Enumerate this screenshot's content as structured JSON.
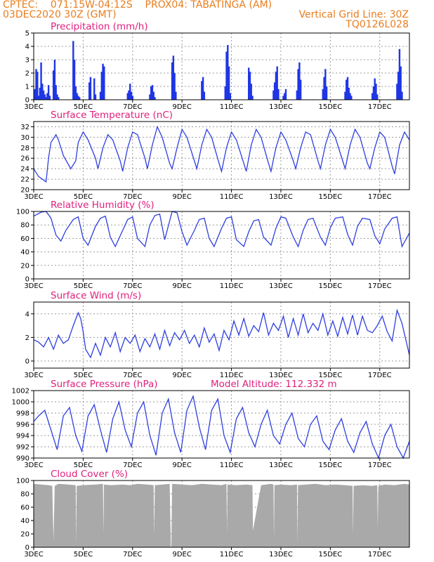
{
  "header": {
    "line1": "CPTEC:    071:15W-04:12S    PROX04: TABATINGA (AM)",
    "line2": "03DEC2020 30Z (GMT)",
    "right2": "Vertical Grid Line: 30Z",
    "right3": "TQ0126L028"
  },
  "colors": {
    "header": "#e87d1e",
    "title": "#e0207e",
    "line": "#2f3fe0",
    "bar": "#1f36e6",
    "cloud": "#a9a9a9",
    "grid": "#9a9a9a"
  },
  "chart_data": [
    {
      "id": "precip",
      "type": "bar",
      "title": "Precipitation (mm/h)",
      "ylim": [
        0,
        5
      ],
      "yticks": [
        0,
        1,
        2,
        3,
        4,
        5
      ],
      "x_unit": "day_of_month",
      "xlim": [
        3,
        18.2
      ],
      "xtick_labels": [
        "3DEC",
        "5DEC",
        "7DEC",
        "9DEC",
        "11DEC",
        "13DEC",
        "15DEC",
        "17DEC"
      ],
      "xtick_positions": [
        3,
        5,
        7,
        9,
        11,
        13,
        15,
        17
      ],
      "x": [
        3.05,
        3.1,
        3.15,
        3.2,
        3.25,
        3.3,
        3.35,
        3.4,
        3.45,
        3.5,
        3.55,
        3.6,
        3.65,
        3.8,
        3.85,
        3.9,
        3.95,
        4.0,
        4.6,
        4.65,
        4.7,
        4.75,
        4.8,
        4.85,
        5.25,
        5.3,
        5.45,
        5.5,
        5.7,
        5.75,
        5.8,
        5.85,
        6.8,
        6.85,
        6.9,
        6.95,
        7.0,
        7.7,
        7.75,
        7.8,
        7.85,
        7.9,
        8.6,
        8.65,
        8.7,
        8.75,
        9.8,
        9.85,
        9.9,
        10.75,
        10.8,
        10.85,
        10.9,
        10.95,
        11.7,
        11.75,
        11.8,
        11.85,
        12.7,
        12.75,
        12.8,
        12.85,
        12.9,
        13.1,
        13.15,
        13.2,
        13.65,
        13.7,
        13.75,
        13.8,
        14.7,
        14.75,
        14.8,
        14.85,
        15.6,
        15.65,
        15.7,
        15.75,
        15.8,
        15.85,
        16.7,
        16.75,
        16.8,
        16.85,
        16.9,
        17.7,
        17.75,
        17.8,
        17.85,
        17.9
      ],
      "values": [
        0.8,
        2.3,
        2.1,
        0.3,
        0.9,
        2.8,
        1.2,
        0.7,
        0.4,
        0.2,
        0.5,
        1.1,
        0.3,
        2.2,
        3.0,
        1.1,
        0.4,
        0.2,
        4.4,
        3.0,
        1.0,
        0.5,
        0.3,
        0.2,
        1.3,
        1.7,
        1.6,
        0.4,
        0.6,
        2.1,
        2.7,
        2.5,
        0.5,
        0.7,
        1.2,
        0.6,
        0.3,
        0.4,
        1.0,
        1.1,
        0.6,
        0.2,
        2.8,
        3.3,
        2.0,
        0.6,
        1.4,
        1.7,
        0.6,
        1.0,
        3.6,
        4.1,
        2.5,
        0.5,
        2.4,
        2.1,
        1.2,
        0.3,
        0.7,
        1.3,
        2.1,
        2.5,
        0.8,
        0.3,
        0.5,
        0.8,
        0.7,
        2.3,
        2.8,
        1.5,
        0.8,
        1.7,
        2.3,
        1.0,
        0.6,
        1.5,
        1.7,
        0.9,
        0.5,
        0.3,
        0.5,
        1.0,
        1.6,
        1.2,
        0.4,
        1.2,
        2.1,
        3.8,
        2.5,
        0.6
      ]
    },
    {
      "id": "temp",
      "type": "line",
      "title": "Surface Temperature (nC)",
      "ylim": [
        20,
        33
      ],
      "yticks": [
        20,
        22,
        24,
        26,
        28,
        30,
        32
      ],
      "x_unit": "day_of_month",
      "xlim": [
        3,
        18.2
      ],
      "xtick_labels": [
        "3DEC",
        "5DEC",
        "7DEC",
        "9DEC",
        "11DEC",
        "13DEC",
        "15DEC",
        "17DEC"
      ],
      "xtick_positions": [
        3,
        5,
        7,
        9,
        11,
        13,
        15,
        17
      ],
      "x": [
        3.0,
        3.2,
        3.5,
        3.6,
        3.7,
        3.9,
        4.0,
        4.2,
        4.5,
        4.7,
        4.8,
        5.0,
        5.2,
        5.5,
        5.6,
        5.8,
        6.0,
        6.2,
        6.5,
        6.6,
        6.8,
        7.0,
        7.2,
        7.5,
        7.6,
        7.8,
        8.0,
        8.2,
        8.5,
        8.6,
        8.8,
        9.0,
        9.2,
        9.5,
        9.6,
        9.8,
        10.0,
        10.2,
        10.5,
        10.6,
        10.8,
        11.0,
        11.2,
        11.5,
        11.6,
        11.8,
        12.0,
        12.2,
        12.5,
        12.6,
        12.8,
        13.0,
        13.2,
        13.5,
        13.6,
        13.8,
        14.0,
        14.2,
        14.5,
        14.6,
        14.8,
        15.0,
        15.2,
        15.5,
        15.6,
        15.8,
        16.0,
        16.2,
        16.5,
        16.6,
        16.8,
        17.0,
        17.2,
        17.5,
        17.6,
        17.8,
        18.0,
        18.2
      ],
      "values": [
        24.0,
        22.5,
        21.5,
        26.0,
        29.0,
        30.5,
        29.5,
        26.5,
        24.0,
        25.5,
        29.0,
        31.0,
        29.5,
        26.0,
        24.0,
        28.0,
        30.5,
        29.5,
        25.5,
        23.5,
        28.0,
        31.0,
        30.5,
        26.0,
        24.0,
        28.5,
        32.0,
        30.0,
        25.0,
        24.0,
        28.0,
        31.5,
        30.0,
        25.5,
        24.0,
        28.5,
        31.5,
        30.0,
        25.0,
        23.5,
        28.0,
        31.0,
        29.5,
        25.0,
        23.5,
        28.5,
        31.5,
        30.0,
        25.0,
        23.5,
        28.0,
        31.0,
        29.5,
        25.5,
        24.0,
        28.0,
        31.0,
        30.5,
        25.5,
        24.0,
        28.5,
        31.5,
        30.0,
        25.5,
        24.0,
        28.5,
        31.5,
        30.0,
        25.0,
        24.0,
        28.0,
        31.0,
        30.0,
        24.5,
        23.0,
        28.5,
        31.0,
        29.5
      ]
    },
    {
      "id": "rh",
      "type": "line",
      "title": "Relative Humidity (%)",
      "ylim": [
        0,
        100
      ],
      "yticks": [
        0,
        20,
        40,
        60,
        80,
        100
      ],
      "x_unit": "day_of_month",
      "xlim": [
        3,
        18.2
      ],
      "xtick_labels": [
        "3DEC",
        "5DEC",
        "7DEC",
        "9DEC",
        "11DEC",
        "13DEC",
        "15DEC",
        "17DEC"
      ],
      "xtick_positions": [
        3,
        5,
        7,
        9,
        11,
        13,
        15,
        17
      ],
      "x": [
        3.0,
        3.3,
        3.5,
        3.7,
        3.9,
        4.1,
        4.3,
        4.6,
        4.8,
        5.0,
        5.2,
        5.5,
        5.7,
        5.9,
        6.1,
        6.3,
        6.6,
        6.8,
        7.0,
        7.2,
        7.5,
        7.7,
        7.9,
        8.1,
        8.3,
        8.6,
        8.8,
        9.0,
        9.2,
        9.5,
        9.7,
        9.9,
        10.1,
        10.3,
        10.6,
        10.8,
        11.0,
        11.2,
        11.5,
        11.7,
        11.9,
        12.1,
        12.3,
        12.6,
        12.8,
        13.0,
        13.2,
        13.5,
        13.7,
        13.9,
        14.1,
        14.3,
        14.6,
        14.8,
        15.0,
        15.2,
        15.5,
        15.7,
        15.9,
        16.1,
        16.3,
        16.6,
        16.8,
        17.0,
        17.2,
        17.5,
        17.7,
        17.9,
        18.2
      ],
      "values": [
        93,
        99,
        100,
        90,
        65,
        56,
        72,
        88,
        92,
        60,
        50,
        78,
        90,
        93,
        62,
        48,
        72,
        88,
        92,
        60,
        48,
        80,
        94,
        96,
        58,
        100,
        98,
        70,
        50,
        72,
        88,
        90,
        60,
        48,
        75,
        90,
        92,
        58,
        48,
        70,
        86,
        88,
        62,
        50,
        75,
        92,
        90,
        62,
        48,
        72,
        88,
        90,
        62,
        50,
        76,
        90,
        92,
        66,
        50,
        78,
        90,
        88,
        64,
        52,
        74,
        90,
        92,
        48,
        68
      ]
    },
    {
      "id": "wind",
      "type": "line",
      "title": "Surface Wind (m/s)",
      "ylim": [
        -0.6,
        5.0
      ],
      "yticks": [
        0,
        2,
        4
      ],
      "x_unit": "day_of_month",
      "xlim": [
        3,
        18.2
      ],
      "xtick_labels": [
        "3DEC",
        "5DEC",
        "7DEC",
        "9DEC",
        "11DEC",
        "13DEC",
        "15DEC",
        "17DEC"
      ],
      "xtick_positions": [
        3,
        5,
        7,
        9,
        11,
        13,
        15,
        17
      ],
      "x": [
        3.0,
        3.2,
        3.4,
        3.6,
        3.8,
        4.0,
        4.2,
        4.4,
        4.6,
        4.8,
        4.9,
        5.0,
        5.1,
        5.3,
        5.5,
        5.7,
        5.9,
        6.1,
        6.3,
        6.5,
        6.7,
        6.9,
        7.1,
        7.3,
        7.5,
        7.7,
        7.9,
        8.1,
        8.3,
        8.5,
        8.7,
        8.9,
        9.1,
        9.3,
        9.5,
        9.7,
        9.9,
        10.1,
        10.3,
        10.5,
        10.7,
        10.9,
        11.1,
        11.3,
        11.5,
        11.7,
        11.9,
        12.1,
        12.3,
        12.5,
        12.7,
        12.9,
        13.1,
        13.3,
        13.5,
        13.7,
        13.9,
        14.1,
        14.3,
        14.5,
        14.7,
        14.9,
        15.1,
        15.3,
        15.5,
        15.7,
        15.9,
        16.1,
        16.3,
        16.5,
        16.7,
        16.9,
        17.1,
        17.3,
        17.5,
        17.7,
        17.9,
        18.2
      ],
      "values": [
        1.8,
        1.6,
        1.2,
        2.0,
        1.0,
        2.2,
        1.5,
        1.8,
        3.0,
        4.1,
        3.6,
        2.5,
        1.0,
        0.3,
        1.5,
        0.5,
        2.0,
        1.2,
        2.4,
        0.8,
        2.0,
        1.5,
        2.2,
        0.8,
        1.9,
        1.2,
        2.3,
        1.0,
        2.6,
        1.3,
        2.4,
        1.8,
        2.6,
        1.5,
        2.2,
        1.2,
        2.8,
        1.6,
        2.3,
        0.9,
        2.6,
        1.8,
        3.4,
        2.2,
        3.6,
        2.1,
        3.0,
        2.5,
        4.1,
        2.2,
        3.2,
        2.6,
        3.8,
        2.0,
        3.6,
        2.2,
        4.0,
        2.4,
        3.2,
        2.6,
        4.0,
        2.2,
        3.4,
        2.1,
        3.7,
        2.3,
        3.9,
        2.2,
        3.8,
        2.6,
        2.4,
        3.0,
        3.8,
        2.5,
        1.7,
        4.3,
        3.2,
        0.5
      ]
    },
    {
      "id": "pressure",
      "type": "line",
      "title": "Surface Pressure (hPa)",
      "annotation": "Model Altitude: 112.332 m",
      "ylim": [
        990,
        1002
      ],
      "yticks": [
        990,
        992,
        994,
        996,
        998,
        1000,
        1002
      ],
      "x_unit": "day_of_month",
      "xlim": [
        3,
        18.2
      ],
      "xtick_labels": [
        "3DEC",
        "5DEC",
        "7DEC",
        "9DEC",
        "11DEC",
        "13DEC",
        "15DEC",
        "17DEC"
      ],
      "xtick_positions": [
        3,
        5,
        7,
        9,
        11,
        13,
        15,
        17
      ],
      "x": [
        3.0,
        3.2,
        3.45,
        3.7,
        3.95,
        4.2,
        4.45,
        4.7,
        4.95,
        5.2,
        5.45,
        5.7,
        5.95,
        6.2,
        6.45,
        6.7,
        6.95,
        7.2,
        7.45,
        7.7,
        7.95,
        8.2,
        8.45,
        8.7,
        8.95,
        9.2,
        9.45,
        9.7,
        9.95,
        10.2,
        10.45,
        10.7,
        10.95,
        11.2,
        11.45,
        11.7,
        11.95,
        12.2,
        12.45,
        12.7,
        12.95,
        13.2,
        13.45,
        13.7,
        13.95,
        14.2,
        14.45,
        14.7,
        14.95,
        15.2,
        15.45,
        15.7,
        15.95,
        16.2,
        16.45,
        16.7,
        16.95,
        17.2,
        17.45,
        17.7,
        17.95,
        18.2
      ],
      "values": [
        996.5,
        997.5,
        998.5,
        995.0,
        991.5,
        997.5,
        999.0,
        994.0,
        991.2,
        997.5,
        999.5,
        995.0,
        991.0,
        997.0,
        1000.0,
        995.0,
        992.0,
        998.0,
        1000.0,
        994.0,
        990.5,
        998.0,
        1000.5,
        994.5,
        991.0,
        998.5,
        1001.0,
        995.5,
        991.5,
        998.5,
        1000.5,
        994.0,
        991.0,
        997.0,
        999.0,
        994.5,
        992.0,
        996.0,
        998.5,
        994.0,
        992.5,
        996.0,
        998.0,
        993.5,
        992.0,
        996.0,
        997.5,
        993.0,
        991.5,
        995.0,
        997.0,
        993.0,
        991.0,
        994.5,
        996.5,
        992.5,
        990.0,
        994.0,
        996.0,
        992.0,
        990.0,
        993.0
      ]
    },
    {
      "id": "cloud",
      "type": "area",
      "title": "Cloud Cover (%)",
      "ylim": [
        0,
        100
      ],
      "yticks": [
        0,
        20,
        40,
        60,
        80,
        100
      ],
      "x_unit": "day_of_month",
      "xlim": [
        3,
        18.2
      ],
      "xtick_labels": [
        "3DEC",
        "5DEC",
        "7DEC",
        "9DEC",
        "11DEC",
        "13DEC",
        "15DEC",
        "17DEC"
      ],
      "xtick_positions": [
        3,
        5,
        7,
        9,
        11,
        13,
        15,
        17
      ],
      "x": [
        3.0,
        3.3,
        3.6,
        3.75,
        3.8,
        3.85,
        4.0,
        4.4,
        4.7,
        4.72,
        4.74,
        5.0,
        5.5,
        5.8,
        5.82,
        5.84,
        6.1,
        6.6,
        6.9,
        7.2,
        7.6,
        7.85,
        7.87,
        7.9,
        8.2,
        8.5,
        8.55,
        8.57,
        8.6,
        9.0,
        9.4,
        9.8,
        10.2,
        10.6,
        10.8,
        10.82,
        10.84,
        11.2,
        11.6,
        11.85,
        11.87,
        12.2,
        12.6,
        12.7,
        12.72,
        12.74,
        13.0,
        13.4,
        13.65,
        13.67,
        13.69,
        14.0,
        14.4,
        14.8,
        15.2,
        15.6,
        15.9,
        15.92,
        15.94,
        16.3,
        16.7,
        16.9,
        16.92,
        16.94,
        17.2,
        17.6,
        18.0,
        18.2
      ],
      "values": [
        95,
        94,
        93,
        92,
        10,
        92,
        95,
        94,
        93,
        5,
        92,
        93,
        94,
        95,
        20,
        94,
        93,
        94,
        93,
        95,
        94,
        93,
        18,
        93,
        94,
        95,
        0,
        0,
        95,
        94,
        93,
        95,
        94,
        93,
        95,
        20,
        94,
        93,
        94,
        93,
        25,
        93,
        95,
        94,
        12,
        93,
        94,
        93,
        94,
        5,
        93,
        94,
        95,
        93,
        94,
        93,
        92,
        20,
        92,
        93,
        92,
        93,
        30,
        92,
        94,
        93,
        95,
        94
      ]
    }
  ]
}
